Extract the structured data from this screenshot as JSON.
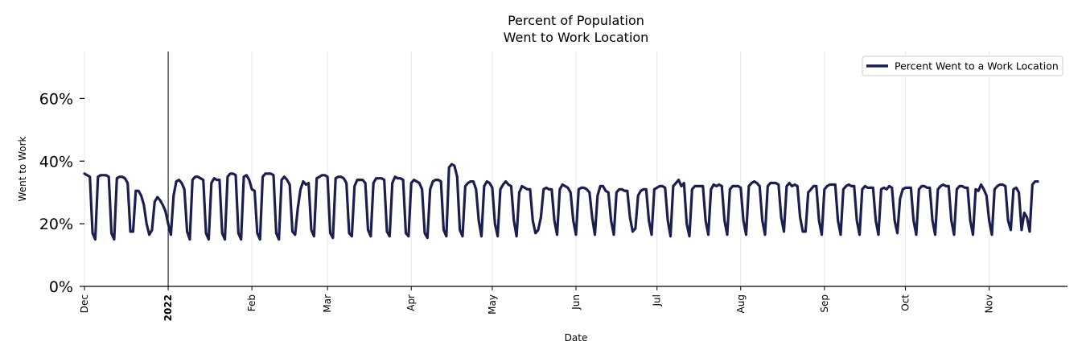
{
  "chart_data": {
    "type": "line",
    "title": "Percent of Population",
    "subtitle": "Went to Work Location",
    "xlabel": "Date",
    "ylabel": "Went to Work",
    "ylim": [
      0,
      75
    ],
    "yticks": [
      0,
      20,
      40,
      60
    ],
    "ytick_labels": [
      "0%",
      "20%",
      "40%",
      "60%"
    ],
    "xlim": [
      0,
      364
    ],
    "xticks": [
      {
        "label": "Dec",
        "day": 0,
        "bold": false
      },
      {
        "label": "2022",
        "day": 31,
        "bold": true
      },
      {
        "label": "Feb",
        "day": 62,
        "bold": false
      },
      {
        "label": "Mar",
        "day": 90,
        "bold": false
      },
      {
        "label": "Apr",
        "day": 121,
        "bold": false
      },
      {
        "label": "May",
        "day": 151,
        "bold": false
      },
      {
        "label": "Jun",
        "day": 182,
        "bold": false
      },
      {
        "label": "Jul",
        "day": 212,
        "bold": false
      },
      {
        "label": "Aug",
        "day": 243,
        "bold": false
      },
      {
        "label": "Sep",
        "day": 274,
        "bold": false
      },
      {
        "label": "Oct",
        "day": 304,
        "bold": false
      },
      {
        "label": "Nov",
        "day": 335,
        "bold": false
      }
    ],
    "year_marker_day": 31,
    "grid": "vertical",
    "legend": "top-right",
    "series": [
      {
        "name": "Percent Went to a Work Location",
        "color": "#1c1f4d",
        "values": [
          36,
          35.5,
          35,
          17,
          15,
          35,
          35.5,
          35.5,
          35.5,
          35,
          17,
          15,
          34.5,
          35,
          35,
          34.5,
          33,
          17.5,
          17.5,
          30.5,
          30.5,
          29,
          26,
          20,
          16.5,
          18,
          27,
          28.5,
          27.5,
          26,
          24,
          20,
          16.5,
          29,
          33.5,
          34,
          33,
          31,
          17.5,
          15,
          34,
          35,
          35,
          34.5,
          34,
          17,
          15,
          33,
          34.5,
          34,
          34,
          17,
          15,
          35,
          36,
          36,
          35.5,
          17,
          15,
          35,
          35.5,
          34,
          31,
          30.5,
          17,
          15,
          35,
          36,
          36,
          36,
          35.5,
          17,
          15,
          34,
          35,
          34,
          32.5,
          17.5,
          16.5,
          25,
          31,
          33.5,
          32.5,
          33,
          18,
          16,
          34.5,
          35,
          35.5,
          35.5,
          35,
          17,
          15.5,
          34.5,
          35,
          35,
          34.5,
          33,
          17,
          16,
          32,
          34,
          34,
          34,
          33,
          18,
          16,
          33,
          34.5,
          34.5,
          34.5,
          34,
          17.5,
          16,
          33,
          35,
          34.5,
          34.5,
          34,
          17,
          16,
          33,
          34,
          33.5,
          33,
          31,
          17,
          15.5,
          31,
          33.5,
          34,
          34,
          33.5,
          18,
          16,
          38,
          39,
          38.5,
          35,
          18,
          16,
          32,
          33,
          33.5,
          33.5,
          31,
          21,
          16,
          32,
          33.5,
          33,
          31.5,
          20,
          16,
          31,
          32.5,
          33.5,
          32.5,
          32,
          21,
          16,
          30,
          32,
          31.5,
          31,
          31,
          21,
          17,
          18,
          22,
          31,
          31.5,
          31,
          31,
          21,
          16.5,
          31,
          32.5,
          32,
          31.5,
          30,
          21,
          16.5,
          31,
          31.5,
          31.5,
          31,
          30,
          22,
          16.5,
          29,
          32,
          32,
          30.5,
          30,
          21,
          16.5,
          30,
          31,
          31,
          30.5,
          30.5,
          22,
          17.5,
          18.5,
          29,
          30.5,
          31,
          31,
          21,
          16.5,
          31,
          31.5,
          32,
          32,
          31.5,
          21,
          16,
          32,
          33,
          34,
          32,
          33,
          20,
          16,
          31,
          32,
          32,
          32,
          32,
          21,
          16.5,
          31,
          32.5,
          32,
          32.5,
          32,
          21,
          16.5,
          31,
          32,
          32,
          32,
          31.5,
          21,
          16.5,
          32,
          33,
          33.5,
          33,
          32,
          21,
          16.5,
          32,
          33,
          33,
          33,
          32.5,
          22,
          17.5,
          32,
          33,
          32,
          32.5,
          32,
          22,
          17.5,
          17.5,
          30,
          31,
          32,
          32,
          21,
          16.5,
          31,
          32,
          32.5,
          32.5,
          32.5,
          21,
          16.5,
          31,
          32,
          32.5,
          32,
          32,
          21,
          16.5,
          31,
          32,
          31.5,
          31.5,
          31.5,
          21,
          16.5,
          31,
          31.5,
          31,
          32,
          31.5,
          21,
          17,
          28,
          31,
          31.5,
          31.5,
          31.5,
          21,
          16.5,
          31,
          32,
          32,
          31.5,
          31.5,
          21,
          16.5,
          31,
          32,
          32.5,
          32,
          32,
          21,
          16.5,
          31,
          32,
          32,
          31.5,
          31.5,
          21,
          16.5,
          31,
          30.5,
          32.5,
          31,
          29,
          21,
          16.5,
          31,
          32,
          32.5,
          32.5,
          32,
          21,
          18,
          31,
          31.5,
          30,
          18,
          23.5,
          22,
          17.5,
          32.5,
          33.5,
          33.5
        ]
      }
    ]
  }
}
